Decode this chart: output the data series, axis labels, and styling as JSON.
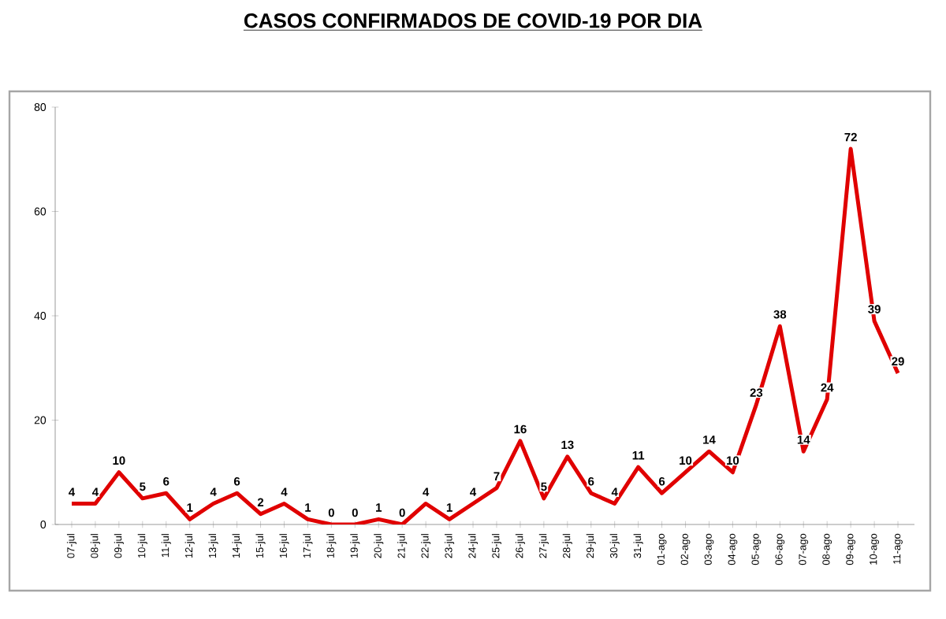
{
  "chart_data": {
    "type": "line",
    "title": "CASOS CONFIRMADOS DE COVID-19 POR DIA",
    "categories": [
      "07-jul",
      "08-jul",
      "09-jul",
      "10-jul",
      "11-jul",
      "12-jul",
      "13-jul",
      "14-jul",
      "15-jul",
      "16-jul",
      "17-jul",
      "18-jul",
      "19-jul",
      "20-jul",
      "21-jul",
      "22-jul",
      "23-jul",
      "24-jul",
      "25-jul",
      "26-jul",
      "27-jul",
      "28-jul",
      "29-jul",
      "30-jul",
      "31-jul",
      "01-ago",
      "02-ago",
      "03-ago",
      "04-ago",
      "05-ago",
      "06-ago",
      "07-ago",
      "08-ago",
      "09-ago",
      "10-ago",
      "11-ago"
    ],
    "values": [
      4,
      4,
      10,
      5,
      6,
      1,
      4,
      6,
      2,
      4,
      1,
      0,
      0,
      1,
      0,
      4,
      1,
      4,
      7,
      16,
      5,
      13,
      6,
      4,
      11,
      6,
      10,
      14,
      10,
      23,
      38,
      14,
      24,
      72,
      39,
      29
    ],
    "color": "#e00000",
    "ylim": [
      0,
      80
    ],
    "yticks": [
      0,
      20,
      40,
      60,
      80
    ],
    "data_labels": true,
    "grid": false,
    "marker": "none",
    "line_style": "solid"
  }
}
